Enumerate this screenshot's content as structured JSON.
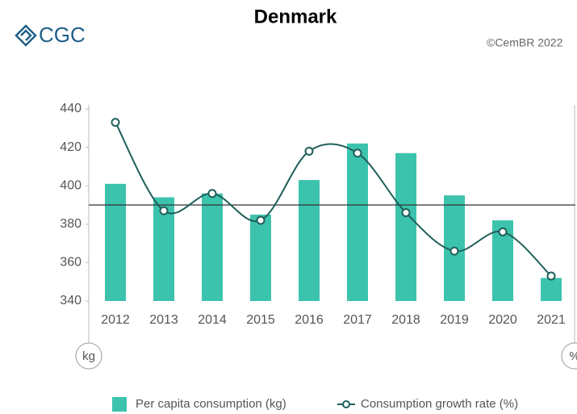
{
  "brand": "CGC",
  "copyright": "©CemBR 2022",
  "chart_data": {
    "type": "bar_line",
    "title": "Denmark",
    "y_label": "kg",
    "y2_label": "%",
    "categories": [
      "2012",
      "2013",
      "2014",
      "2015",
      "2016",
      "2017",
      "2018",
      "2019",
      "2020",
      "2021"
    ],
    "series": [
      {
        "name": "Per capita consumption (kg)",
        "type": "bar",
        "color": "#3cc3ad",
        "values": [
          401,
          394,
          396,
          385,
          403,
          422,
          417,
          395,
          382,
          352
        ]
      },
      {
        "name": "Consumption growth rate (%)",
        "type": "line",
        "color": "#1f5f5a",
        "values": [
          433,
          387,
          396,
          382,
          418,
          417,
          386,
          366,
          376,
          353
        ]
      }
    ],
    "ylim": [
      340,
      440
    ],
    "yticks": [
      340,
      360,
      380,
      400,
      420,
      440
    ],
    "reference_line": 390,
    "grid": false,
    "legend": "bottom"
  }
}
